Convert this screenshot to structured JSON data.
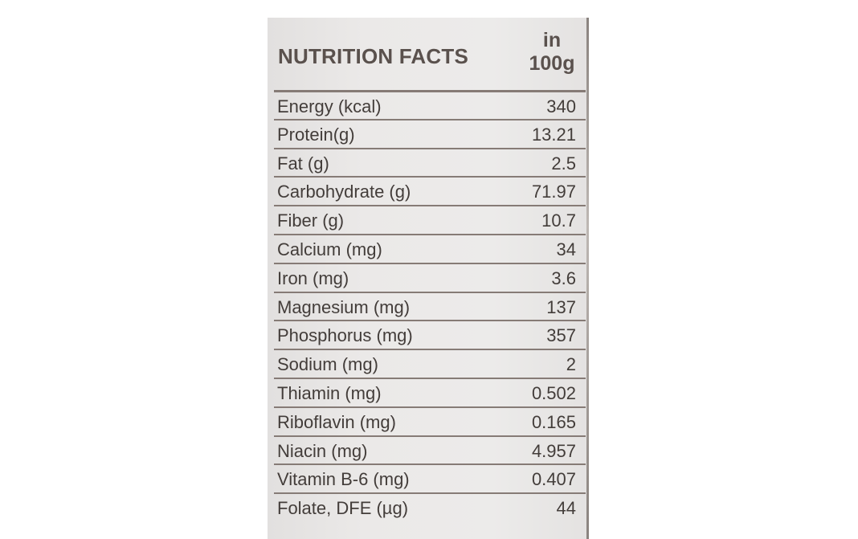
{
  "label": {
    "title": "NUTRITION FACTS",
    "per_line1": "in",
    "per_line2": "100g",
    "rows": [
      {
        "name": "Energy (kcal)",
        "value": "340"
      },
      {
        "name": "Protein(g)",
        "value": "13.21"
      },
      {
        "name": "Fat (g)",
        "value": "2.5"
      },
      {
        "name": "Carbohydrate (g)",
        "value": "71.97"
      },
      {
        "name": "Fiber (g)",
        "value": "10.7"
      },
      {
        "name": "Calcium (mg)",
        "value": "34"
      },
      {
        "name": "Iron (mg)",
        "value": "3.6"
      },
      {
        "name": "Magnesium (mg)",
        "value": "137"
      },
      {
        "name": "Phosphorus (mg)",
        "value": "357"
      },
      {
        "name": "Sodium (mg)",
        "value": "2"
      },
      {
        "name": "Thiamin (mg)",
        "value": "0.502"
      },
      {
        "name": "Riboflavin (mg)",
        "value": "0.165"
      },
      {
        "name": "Niacin (mg)",
        "value": "4.957"
      },
      {
        "name": "Vitamin B-6 (mg)",
        "value": "0.407"
      },
      {
        "name": "Folate, DFE (µg)",
        "value": "44"
      }
    ]
  }
}
